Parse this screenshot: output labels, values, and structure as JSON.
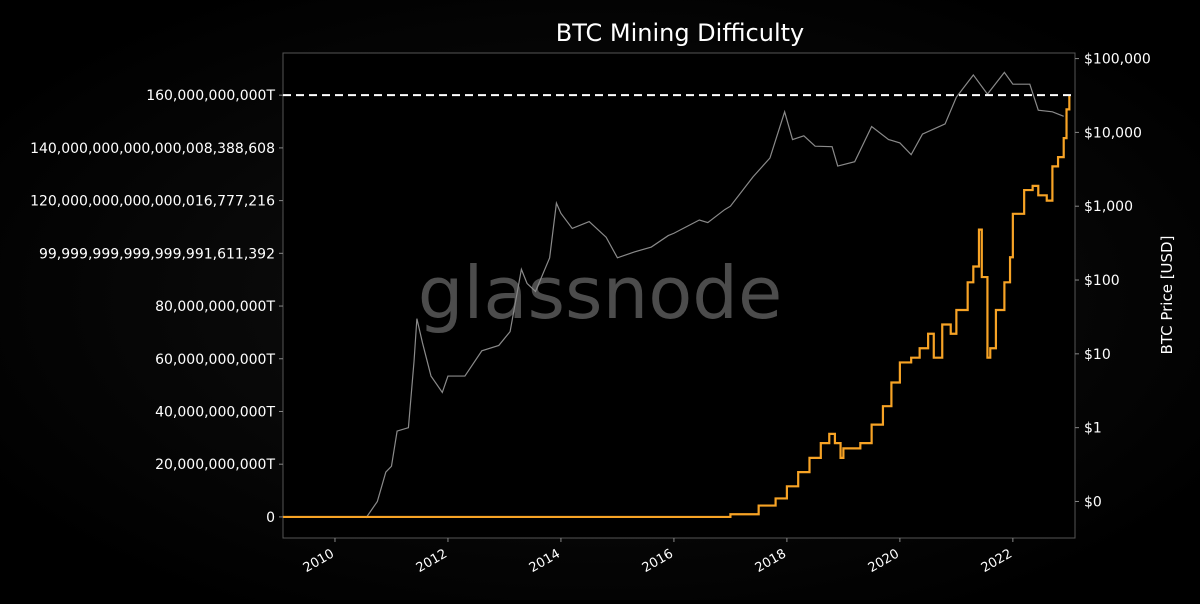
{
  "chart_data": {
    "type": "line",
    "title": "BTC Mining Difficulty",
    "watermark": "glassnode",
    "xlabel": "",
    "ylabel_left": "",
    "ylabel_right": "BTC Price [USD]",
    "x_ticks": [
      "2010",
      "2012",
      "2014",
      "2016",
      "2018",
      "2020",
      "2022"
    ],
    "xlim": [
      2009.08,
      2023.1
    ],
    "y_left": {
      "unit": "T",
      "ylim": [
        -8,
        176
      ],
      "ticks": [
        0,
        20,
        40,
        60,
        80,
        100,
        120,
        140,
        160
      ],
      "tick_labels": [
        "0",
        "20,000,000,000T",
        "40,000,000,000T",
        "60,000,000,000T",
        "80,000,000,000T",
        "99,999,999,999,999,991,611,392",
        "120,000,000,000,000,016,777,216",
        "140,000,000,000,000,008,388,608",
        "160,000,000,000T"
      ]
    },
    "y_right": {
      "scale": "log",
      "ylim": [
        0.032,
        119000
      ],
      "ticks": [
        0.1,
        1,
        10,
        100,
        1000,
        10000,
        100000
      ],
      "tick_labels": [
        "$0",
        "$1",
        "$10",
        "$100",
        "$1,000",
        "$10,000",
        "$100,000"
      ]
    },
    "reference_line": {
      "value": 160,
      "axis": "left",
      "style": "dashed",
      "color": "#ffffff"
    },
    "grid": false,
    "series": [
      {
        "axis": "left",
        "color": "#f7a325",
        "x": [
          2009.08,
          2016.5,
          2017.0,
          2017.5,
          2017.8,
          2018.0,
          2018.2,
          2018.4,
          2018.6,
          2018.75,
          2018.85,
          2018.95,
          2019.0,
          2019.3,
          2019.5,
          2019.7,
          2019.85,
          2020.0,
          2020.2,
          2020.35,
          2020.5,
          2020.6,
          2020.75,
          2020.9,
          2021.0,
          2021.2,
          2021.3,
          2021.4,
          2021.45,
          2021.55,
          2021.6,
          2021.7,
          2021.85,
          2021.95,
          2022.0,
          2022.2,
          2022.35,
          2022.45,
          2022.6,
          2022.7,
          2022.8,
          2022.9,
          2022.95,
          2023.0
        ],
        "values": [
          0,
          0,
          1,
          4.3,
          7,
          11.6,
          17,
          22.4,
          28,
          31.5,
          28,
          22.4,
          26,
          28,
          35,
          42,
          51,
          58.6,
          60.4,
          64,
          69.5,
          60.4,
          73,
          69.5,
          78.5,
          89,
          95,
          109,
          91,
          60.4,
          64,
          78.5,
          89,
          98.5,
          115,
          124,
          125.6,
          122,
          120,
          133,
          136.5,
          143.7,
          154.6,
          160
        ]
      },
      {
        "axis": "right",
        "color": "#8a8a8a",
        "x": [
          2010.55,
          2010.75,
          2010.9,
          2011.0,
          2011.1,
          2011.3,
          2011.4,
          2011.45,
          2011.55,
          2011.7,
          2011.9,
          2012.0,
          2012.3,
          2012.6,
          2012.9,
          2013.1,
          2013.3,
          2013.4,
          2013.55,
          2013.8,
          2013.92,
          2014.0,
          2014.2,
          2014.5,
          2014.8,
          2015.0,
          2015.3,
          2015.6,
          2015.9,
          2016.0,
          2016.45,
          2016.6,
          2016.9,
          2017.0,
          2017.4,
          2017.7,
          2017.96,
          2018.1,
          2018.3,
          2018.5,
          2018.8,
          2018.9,
          2019.2,
          2019.5,
          2019.8,
          2020.0,
          2020.2,
          2020.4,
          2020.8,
          2021.0,
          2021.3,
          2021.55,
          2021.85,
          2022.0,
          2022.3,
          2022.45,
          2022.7,
          2022.9
        ],
        "values": [
          0.06,
          0.1,
          0.25,
          0.3,
          0.9,
          1,
          8,
          30,
          14,
          5,
          3,
          5,
          5,
          11,
          13,
          20,
          140,
          90,
          70,
          200,
          1100,
          800,
          500,
          620,
          380,
          200,
          240,
          280,
          400,
          430,
          650,
          600,
          900,
          1000,
          2500,
          4500,
          19000,
          8000,
          9000,
          6500,
          6400,
          3500,
          4000,
          12000,
          8000,
          7200,
          5000,
          9500,
          13000,
          30000,
          60000,
          33000,
          65000,
          45000,
          45000,
          20000,
          19000,
          16500
        ]
      }
    ]
  }
}
